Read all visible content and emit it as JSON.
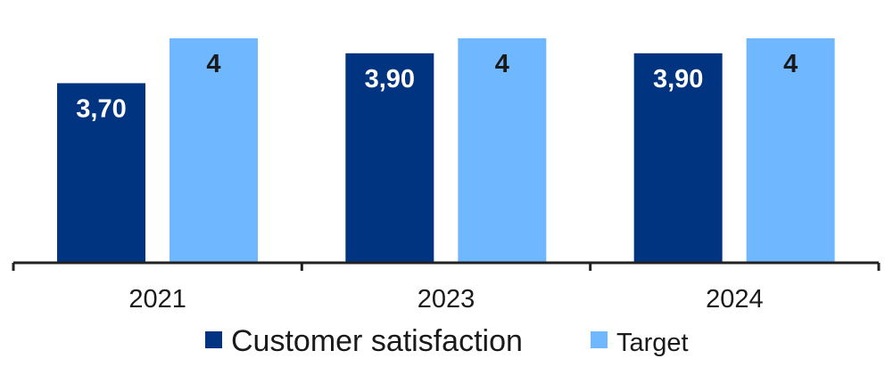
{
  "chart_data": {
    "type": "bar",
    "categories": [
      "2021",
      "2023",
      "2024"
    ],
    "series": [
      {
        "name": "Customer satisfaction",
        "values": [
          3.7,
          3.9,
          3.9
        ],
        "labels": [
          "3,70",
          "3,90",
          "3,90"
        ],
        "color": "#003380"
      },
      {
        "name": "Target",
        "values": [
          4,
          4,
          4
        ],
        "labels": [
          "4",
          "4",
          "4"
        ],
        "color": "#6FB8FF"
      }
    ],
    "title": "",
    "xlabel": "",
    "ylabel": "",
    "ylim": [
      2.5,
      4
    ],
    "grid": false,
    "legend": "bottom",
    "data_labels": true,
    "colors": {
      "axis": "#222222",
      "label_on_dark": "#ffffff",
      "label_on_light": "#1a1a1a",
      "text": "#1a1a1a"
    }
  }
}
